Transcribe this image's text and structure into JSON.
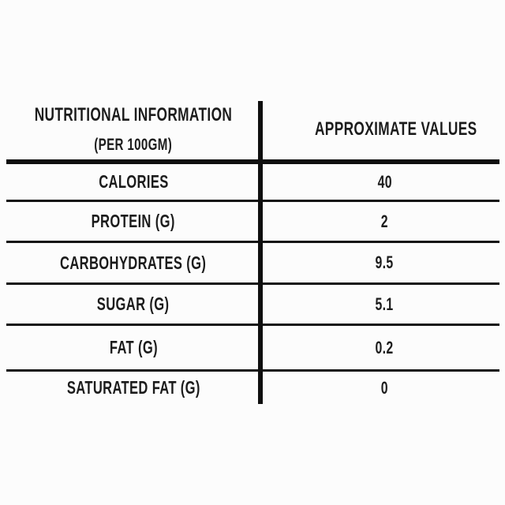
{
  "page": {
    "background": "#fcfcfc",
    "text_color": "#1c1c1c",
    "line_color": "#0f0f0f"
  },
  "table": {
    "header": {
      "col1_line1": "NUTRITIONAL INFORMATION",
      "col1_line2": "(PER 100GM)",
      "col2": "APPROXIMATE VALUES"
    },
    "rows": [
      {
        "label": "CALORIES",
        "value": "40"
      },
      {
        "label": "PROTEIN (G)",
        "value": "2"
      },
      {
        "label": "CARBOHYDRATES (G)",
        "value": "9.5"
      },
      {
        "label": "SUGAR (G)",
        "value": "5.1"
      },
      {
        "label": "FAT (G)",
        "value": "0.2"
      },
      {
        "label": "SATURATED FAT (G)",
        "value": "0"
      }
    ]
  },
  "chart_data": {
    "type": "table",
    "columns": [
      "NUTRITIONAL INFORMATION (PER 100GM)",
      "APPROXIMATE VALUES"
    ],
    "rows": [
      [
        "CALORIES",
        40
      ],
      [
        "PROTEIN (G)",
        2
      ],
      [
        "CARBOHYDRATES (G)",
        9.5
      ],
      [
        "SUGAR (G)",
        5.1
      ],
      [
        "FAT (G)",
        0.2
      ],
      [
        "SATURATED FAT (G)",
        0
      ]
    ]
  }
}
